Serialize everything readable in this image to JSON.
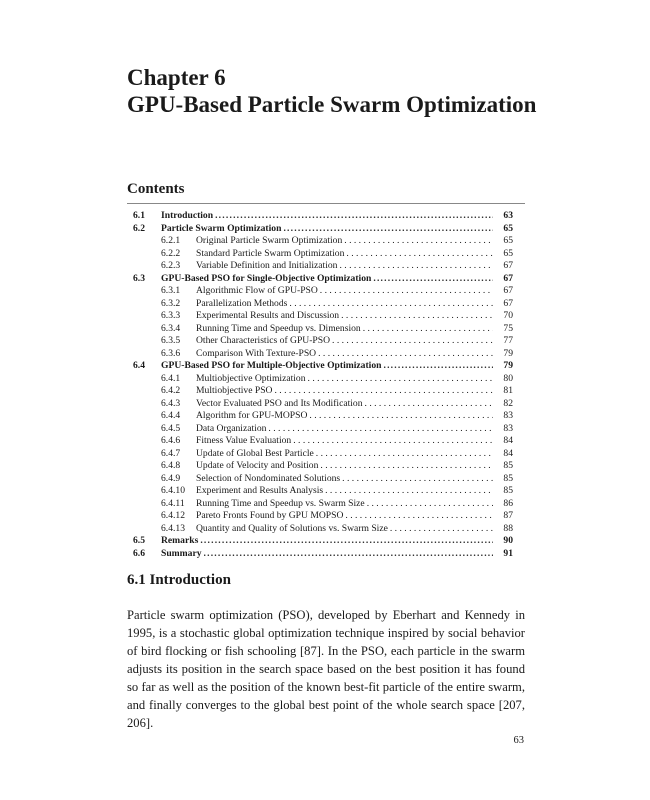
{
  "chapter": {
    "label": "Chapter 6",
    "title": "GPU-Based Particle Swarm Optimization"
  },
  "contents_heading": "Contents",
  "toc": [
    {
      "level": 1,
      "num": "6.1",
      "title": "Introduction",
      "page": "63"
    },
    {
      "level": 1,
      "num": "6.2",
      "title": "Particle Swarm Optimization",
      "page": "65"
    },
    {
      "level": 2,
      "num": "6.2.1",
      "title": "Original Particle Swarm Optimization",
      "page": "65"
    },
    {
      "level": 2,
      "num": "6.2.2",
      "title": "Standard Particle Swarm Optimization",
      "page": "65"
    },
    {
      "level": 2,
      "num": "6.2.3",
      "title": "Variable Definition and Initialization",
      "page": "67"
    },
    {
      "level": 1,
      "num": "6.3",
      "title": "GPU-Based PSO for Single-Objective Optimization",
      "page": "67"
    },
    {
      "level": 2,
      "num": "6.3.1",
      "title": "Algorithmic Flow of GPU-PSO",
      "page": "67"
    },
    {
      "level": 2,
      "num": "6.3.2",
      "title": "Parallelization Methods",
      "page": "67"
    },
    {
      "level": 2,
      "num": "6.3.3",
      "title": "Experimental Results and Discussion",
      "page": "70"
    },
    {
      "level": 2,
      "num": "6.3.4",
      "title": "Running Time and Speedup vs. Dimension",
      "page": "75"
    },
    {
      "level": 2,
      "num": "6.3.5",
      "title": "Other Characteristics of GPU-PSO",
      "page": "77"
    },
    {
      "level": 2,
      "num": "6.3.6",
      "title": "Comparison With Texture-PSO",
      "page": "79"
    },
    {
      "level": 1,
      "num": "6.4",
      "title": "GPU-Based PSO for Multiple-Objective Optimization",
      "page": "79"
    },
    {
      "level": 2,
      "num": "6.4.1",
      "title": "Multiobjective Optimization",
      "page": "80"
    },
    {
      "level": 2,
      "num": "6.4.2",
      "title": "Multiobjective PSO",
      "page": "81"
    },
    {
      "level": 2,
      "num": "6.4.3",
      "title": "Vector Evaluated PSO and Its Modification",
      "page": "82"
    },
    {
      "level": 2,
      "num": "6.4.4",
      "title": "Algorithm for GPU-MOPSO",
      "page": "83"
    },
    {
      "level": 2,
      "num": "6.4.5",
      "title": "Data Organization",
      "page": "83"
    },
    {
      "level": 2,
      "num": "6.4.6",
      "title": "Fitness Value Evaluation",
      "page": "84"
    },
    {
      "level": 2,
      "num": "6.4.7",
      "title": "Update of Global Best Particle",
      "page": "84"
    },
    {
      "level": 2,
      "num": "6.4.8",
      "title": "Update of Velocity and Position",
      "page": "85"
    },
    {
      "level": 2,
      "num": "6.4.9",
      "title": "Selection of Nondominated Solutions",
      "page": "85"
    },
    {
      "level": 2,
      "num": "6.4.10",
      "title": "Experiment and Results Analysis",
      "page": "85"
    },
    {
      "level": 2,
      "num": "6.4.11",
      "title": "Running Time and Speedup vs. Swarm Size",
      "page": "86"
    },
    {
      "level": 2,
      "num": "6.4.12",
      "title": "Pareto Fronts Found by GPU MOPSO",
      "page": "87"
    },
    {
      "level": 2,
      "num": "6.4.13",
      "title": "Quantity and Quality of Solutions vs. Swarm Size",
      "page": "88"
    },
    {
      "level": 1,
      "num": "6.5",
      "title": "Remarks",
      "page": "90"
    },
    {
      "level": 1,
      "num": "6.6",
      "title": "Summary",
      "page": "91"
    }
  ],
  "section": {
    "heading": "6.1 Introduction",
    "paragraph": "Particle swarm optimization (PSO), developed by Eberhart and Kennedy in 1995, is a stochastic global optimization technique inspired by social behavior of bird flocking or fish schooling [87]. In the PSO, each particle in the swarm adjusts its position in the search space based on the best position it has found so far as well as the position of the known best-fit particle of the entire swarm, and finally converges to the global best point of the whole search space [207, 206]."
  },
  "page_number": "63"
}
